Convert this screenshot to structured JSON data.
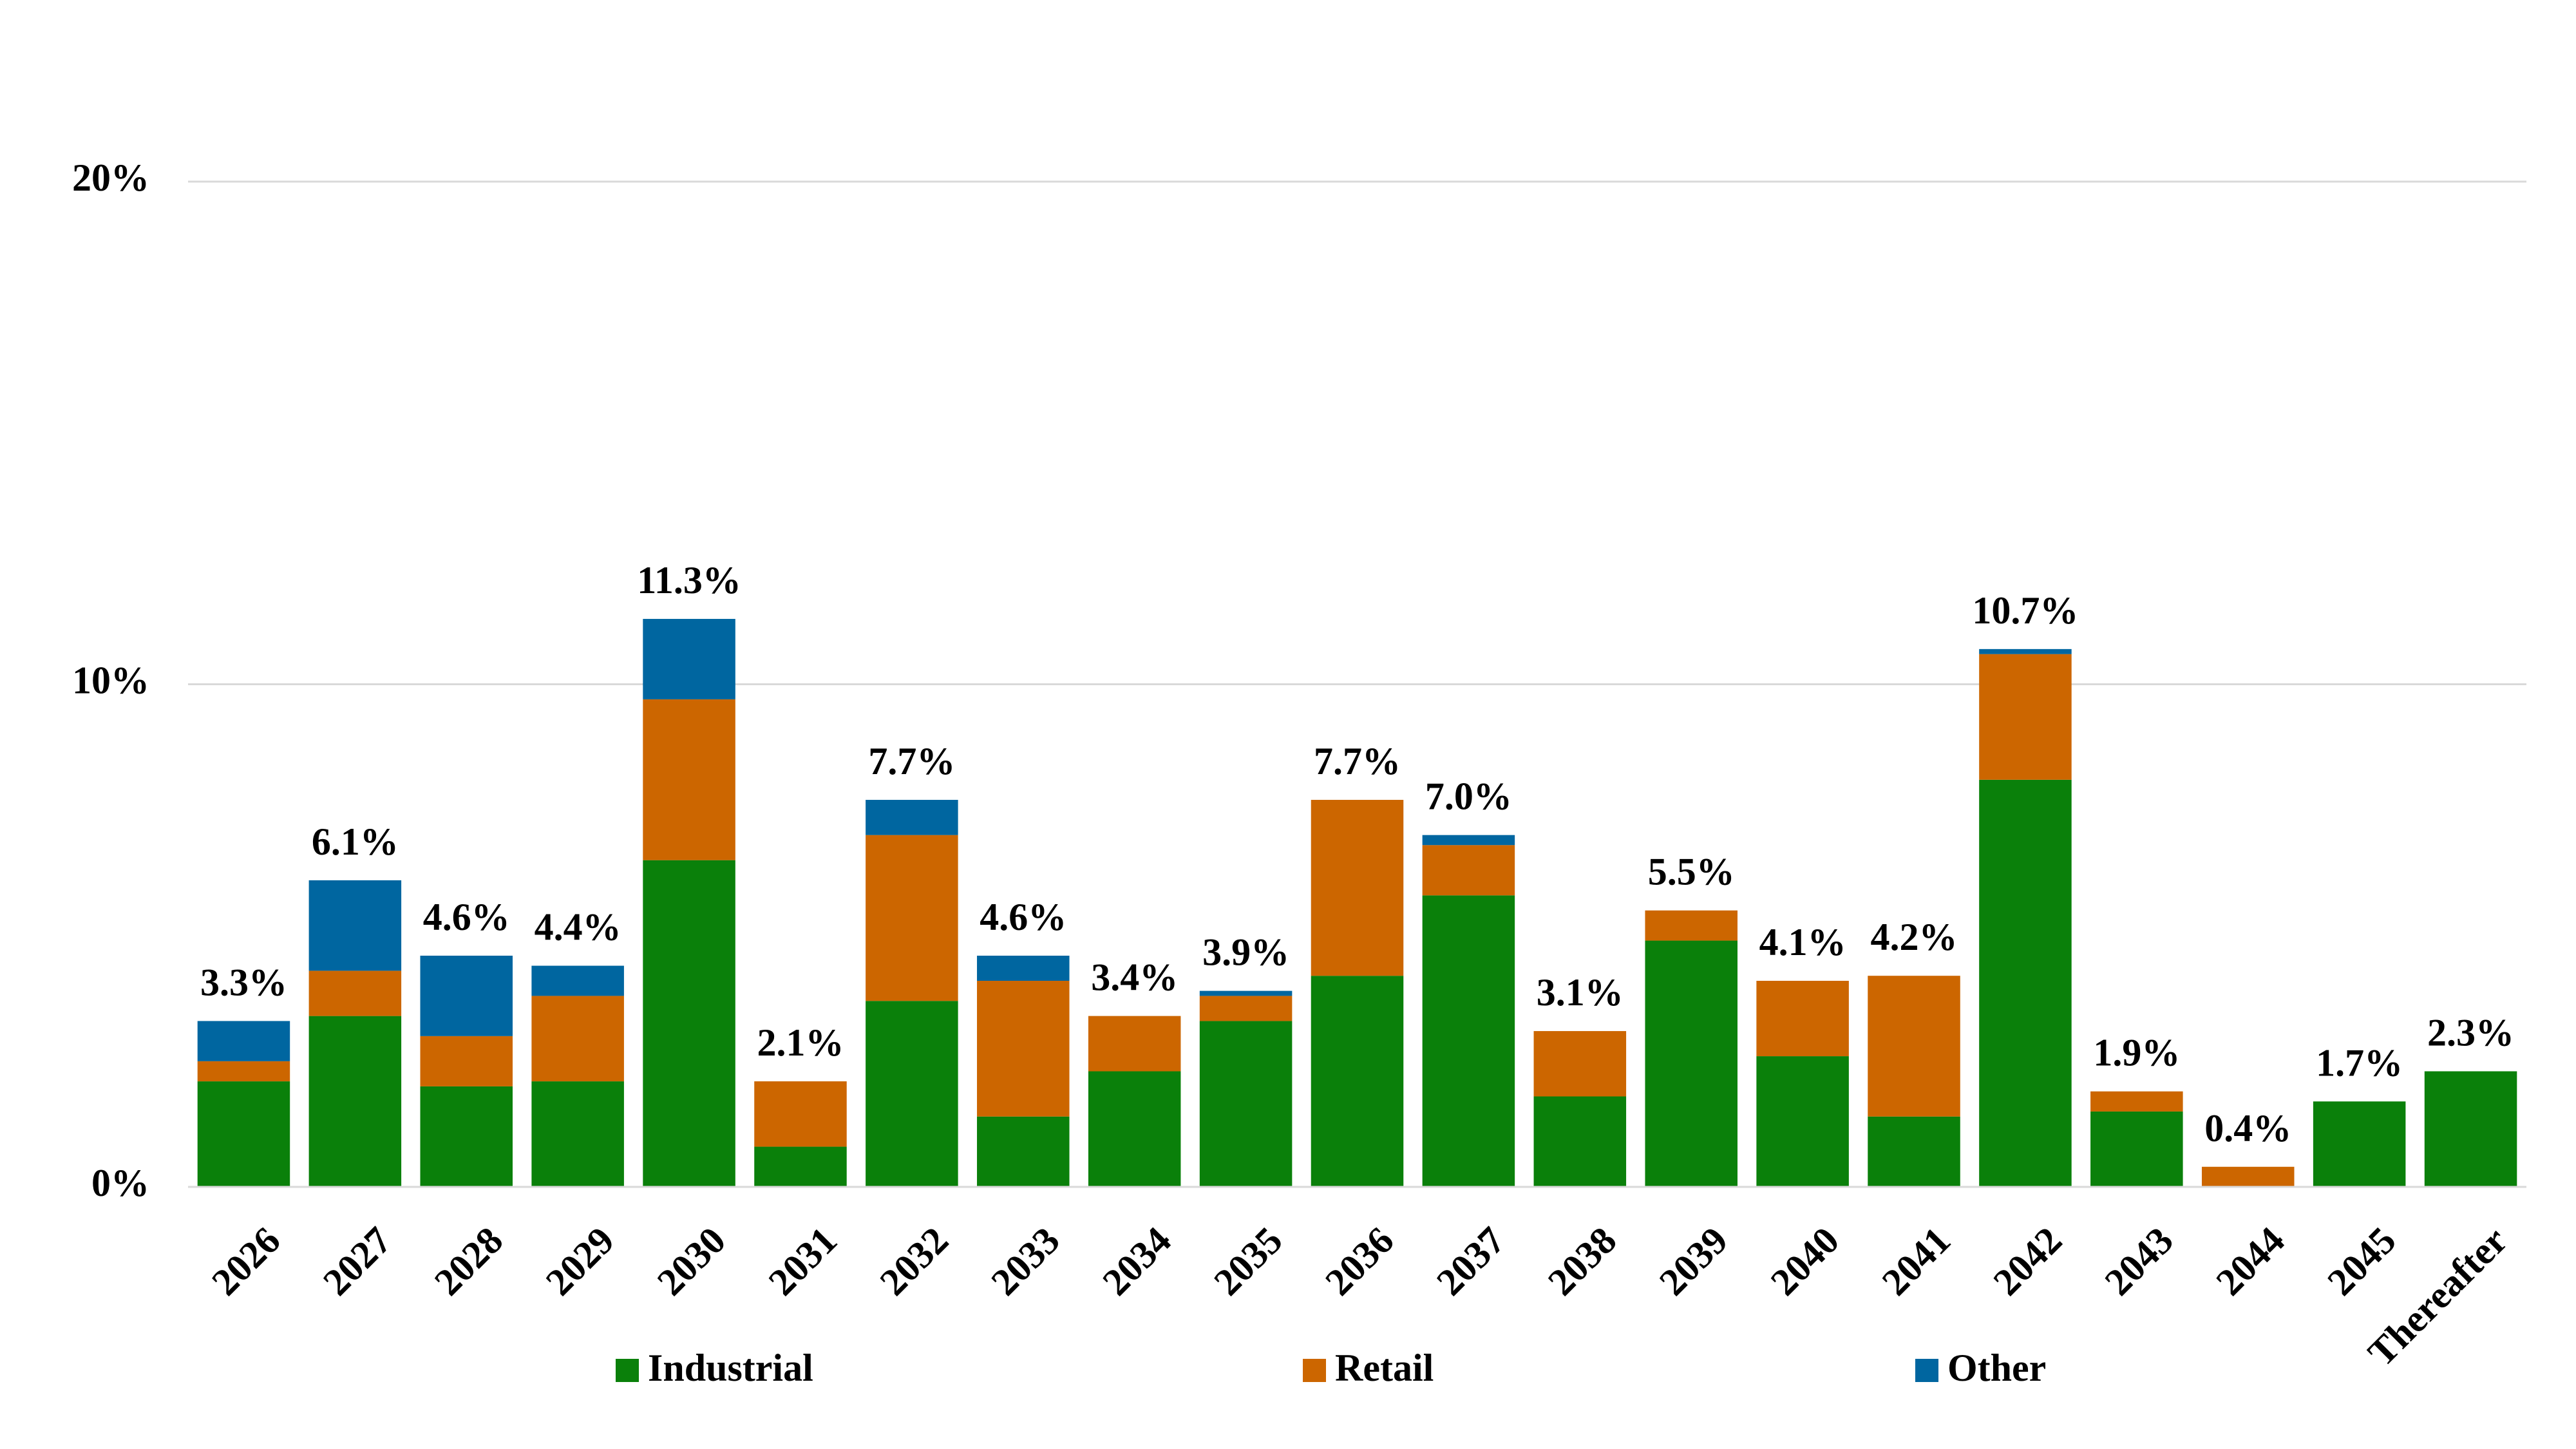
{
  "chart_data": {
    "type": "stacked_bar",
    "categories": [
      "2026",
      "2027",
      "2028",
      "2029",
      "2030",
      "2031",
      "2032",
      "2033",
      "2034",
      "2035",
      "2036",
      "2037",
      "2038",
      "2039",
      "2040",
      "2041",
      "2042",
      "2043",
      "2044",
      "2045",
      "Thereafter"
    ],
    "series": [
      {
        "name": "Industrial",
        "color": "#0a800a",
        "values": [
          2.1,
          3.4,
          2.0,
          2.1,
          6.5,
          0.8,
          3.7,
          1.4,
          2.3,
          3.3,
          4.2,
          5.8,
          1.8,
          4.9,
          2.6,
          1.4,
          8.1,
          1.5,
          null,
          1.7,
          2.3
        ]
      },
      {
        "name": "Retail",
        "color": "#cc6600",
        "values": [
          0.4,
          0.9,
          1.0,
          1.7,
          3.2,
          1.3,
          3.3,
          2.7,
          1.1,
          0.5,
          3.5,
          1.0,
          1.3,
          0.6,
          1.5,
          2.8,
          2.5,
          0.4,
          0.4,
          null,
          null
        ]
      },
      {
        "name": "Other",
        "color": "#0066a0",
        "values": [
          0.8,
          1.8,
          1.6,
          0.6,
          1.6,
          null,
          0.7,
          0.5,
          null,
          0.1,
          null,
          0.2,
          null,
          null,
          null,
          null,
          0.1,
          null,
          null,
          null,
          null
        ]
      }
    ],
    "totals": [
      3.3,
      6.1,
      4.6,
      4.4,
      11.3,
      2.1,
      7.7,
      4.6,
      3.4,
      3.9,
      7.7,
      7.0,
      3.1,
      5.5,
      4.1,
      4.2,
      10.7,
      1.9,
      0.4,
      1.7,
      2.3
    ],
    "total_labels": [
      "3.3%",
      "6.1%",
      "4.6%",
      "4.4%",
      "11.3%",
      "2.1%",
      "7.7%",
      "4.6%",
      "3.4%",
      "3.9%",
      "7.7%",
      "7.0%",
      "3.1%",
      "5.5%",
      "4.1%",
      "4.2%",
      "10.7%",
      "1.9%",
      "0.4%",
      "1.7%",
      "2.3%"
    ],
    "ylim": [
      0,
      20
    ],
    "yticks": [
      {
        "value": 0,
        "label": "0%"
      },
      {
        "value": 10,
        "label": "10%"
      },
      {
        "value": 20,
        "label": "20%"
      }
    ],
    "grid": true,
    "legend": "bottom"
  }
}
